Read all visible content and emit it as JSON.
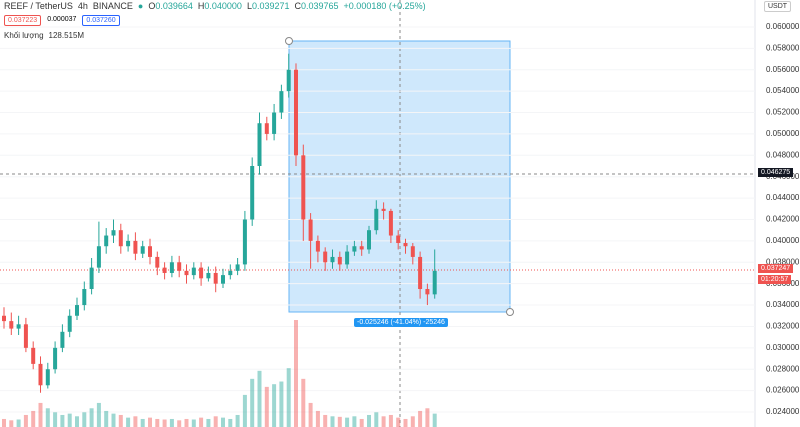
{
  "header": {
    "symbol": "REEF / TetherUS",
    "interval": "4h",
    "exchange": "BINANCE",
    "o_label": "O",
    "o": "0.039664",
    "h_label": "H",
    "h": "0.040000",
    "l_label": "L",
    "l": "0.039271",
    "c_label": "C",
    "c": "0.039765",
    "change": "+0.000180 (+0.25%)",
    "sell": "0.037223",
    "spread": "0.000037",
    "buy": "0.037260",
    "volume_label": "Khối lượng",
    "volume": "128.515M"
  },
  "overlay": {
    "currency": "USDT",
    "crosshair_price": "0.046275",
    "last_price": "0.037247",
    "countdown": "01:20:57",
    "measure": "-0.025246 (-41.04%) -25246"
  },
  "chart_data": {
    "type": "candlestick",
    "up_color": "#26a69a",
    "down_color": "#ef5350",
    "grid": true,
    "ylim": [
      0.0226,
      0.06252
    ],
    "yticks": [
      {
        "value": 0.024,
        "label": "0.024000"
      },
      {
        "value": 0.026,
        "label": "0.026000"
      },
      {
        "value": 0.028,
        "label": "0.028000"
      },
      {
        "value": 0.03,
        "label": "0.030000"
      },
      {
        "value": 0.032,
        "label": "0.032000"
      },
      {
        "value": 0.034,
        "label": "0.034000"
      },
      {
        "value": 0.036,
        "label": "0.036000"
      },
      {
        "value": 0.038,
        "label": "0.038000"
      },
      {
        "value": 0.04,
        "label": "0.040000"
      },
      {
        "value": 0.042,
        "label": "0.042000"
      },
      {
        "value": 0.044,
        "label": "0.044000"
      },
      {
        "value": 0.046,
        "label": "0.046000"
      },
      {
        "value": 0.048,
        "label": "0.048000"
      },
      {
        "value": 0.05,
        "label": "0.050000"
      },
      {
        "value": 0.052,
        "label": "0.052000"
      },
      {
        "value": 0.054,
        "label": "0.054000"
      },
      {
        "value": 0.056,
        "label": "0.056000"
      },
      {
        "value": 0.058,
        "label": "0.058000"
      },
      {
        "value": 0.06,
        "label": "0.060000"
      }
    ],
    "open": [
      0.033,
      0.0325,
      0.0318,
      0.0322,
      0.03,
      0.0285,
      0.0265,
      0.028,
      0.03,
      0.0315,
      0.033,
      0.034,
      0.0355,
      0.0375,
      0.0395,
      0.0405,
      0.041,
      0.0395,
      0.04,
      0.0388,
      0.0395,
      0.0385,
      0.0375,
      0.037,
      0.038,
      0.0372,
      0.0368,
      0.0375,
      0.0365,
      0.037,
      0.036,
      0.0368,
      0.0372,
      0.0378,
      0.042,
      0.047,
      0.051,
      0.05,
      0.052,
      0.054,
      0.056,
      0.048,
      0.042,
      0.04,
      0.039,
      0.038,
      0.0385,
      0.0378,
      0.039,
      0.0395,
      0.0392,
      0.041,
      0.043,
      0.0428,
      0.0405,
      0.0398,
      0.0395,
      0.0385,
      0.0355,
      0.035
    ],
    "high": [
      0.0338,
      0.0333,
      0.033,
      0.0328,
      0.0306,
      0.0292,
      0.0286,
      0.0306,
      0.0322,
      0.0336,
      0.0347,
      0.0362,
      0.0384,
      0.0418,
      0.0412,
      0.042,
      0.0416,
      0.0406,
      0.0408,
      0.04,
      0.0402,
      0.039,
      0.038,
      0.0386,
      0.0386,
      0.0378,
      0.038,
      0.038,
      0.0376,
      0.0376,
      0.0374,
      0.0378,
      0.0384,
      0.0428,
      0.0478,
      0.052,
      0.0516,
      0.0528,
      0.0546,
      0.0575,
      0.0566,
      0.049,
      0.0426,
      0.0405,
      0.0394,
      0.0392,
      0.039,
      0.0396,
      0.04,
      0.04,
      0.0414,
      0.0438,
      0.0436,
      0.043,
      0.041,
      0.0402,
      0.0398,
      0.039,
      0.036,
      0.0392
    ],
    "low": [
      0.0318,
      0.0312,
      0.0312,
      0.0296,
      0.028,
      0.0258,
      0.0262,
      0.0276,
      0.0296,
      0.031,
      0.0326,
      0.0335,
      0.035,
      0.037,
      0.0388,
      0.0398,
      0.0388,
      0.039,
      0.0382,
      0.0384,
      0.0378,
      0.0368,
      0.0364,
      0.0366,
      0.0366,
      0.036,
      0.0364,
      0.0358,
      0.0362,
      0.0352,
      0.0356,
      0.0364,
      0.0368,
      0.0372,
      0.0414,
      0.0462,
      0.0494,
      0.0494,
      0.0514,
      0.0534,
      0.047,
      0.04,
      0.0374,
      0.038,
      0.0372,
      0.0374,
      0.0372,
      0.0374,
      0.0386,
      0.0386,
      0.0388,
      0.0406,
      0.042,
      0.0398,
      0.0392,
      0.0388,
      0.0378,
      0.0346,
      0.034,
      0.0346
    ],
    "close": [
      0.0325,
      0.0318,
      0.0322,
      0.03,
      0.0285,
      0.0265,
      0.028,
      0.03,
      0.0315,
      0.033,
      0.034,
      0.0355,
      0.0375,
      0.0395,
      0.0405,
      0.041,
      0.0395,
      0.04,
      0.0388,
      0.0395,
      0.0385,
      0.0375,
      0.037,
      0.038,
      0.0372,
      0.0368,
      0.0375,
      0.0365,
      0.037,
      0.036,
      0.0368,
      0.0372,
      0.0378,
      0.042,
      0.047,
      0.051,
      0.05,
      0.052,
      0.054,
      0.056,
      0.048,
      0.042,
      0.04,
      0.039,
      0.038,
      0.0385,
      0.0378,
      0.039,
      0.0395,
      0.0392,
      0.041,
      0.043,
      0.0428,
      0.0405,
      0.0398,
      0.0395,
      0.0385,
      0.0355,
      0.035,
      0.0372
    ],
    "volume": [
      30,
      25,
      28,
      45,
      60,
      90,
      70,
      55,
      45,
      50,
      40,
      55,
      70,
      90,
      60,
      50,
      45,
      35,
      40,
      30,
      35,
      30,
      28,
      30,
      25,
      30,
      28,
      35,
      30,
      40,
      35,
      30,
      45,
      120,
      180,
      210,
      150,
      160,
      170,
      220,
      400,
      180,
      90,
      60,
      45,
      40,
      38,
      35,
      40,
      30,
      45,
      55,
      40,
      45,
      35,
      30,
      40,
      60,
      70,
      50
    ]
  }
}
